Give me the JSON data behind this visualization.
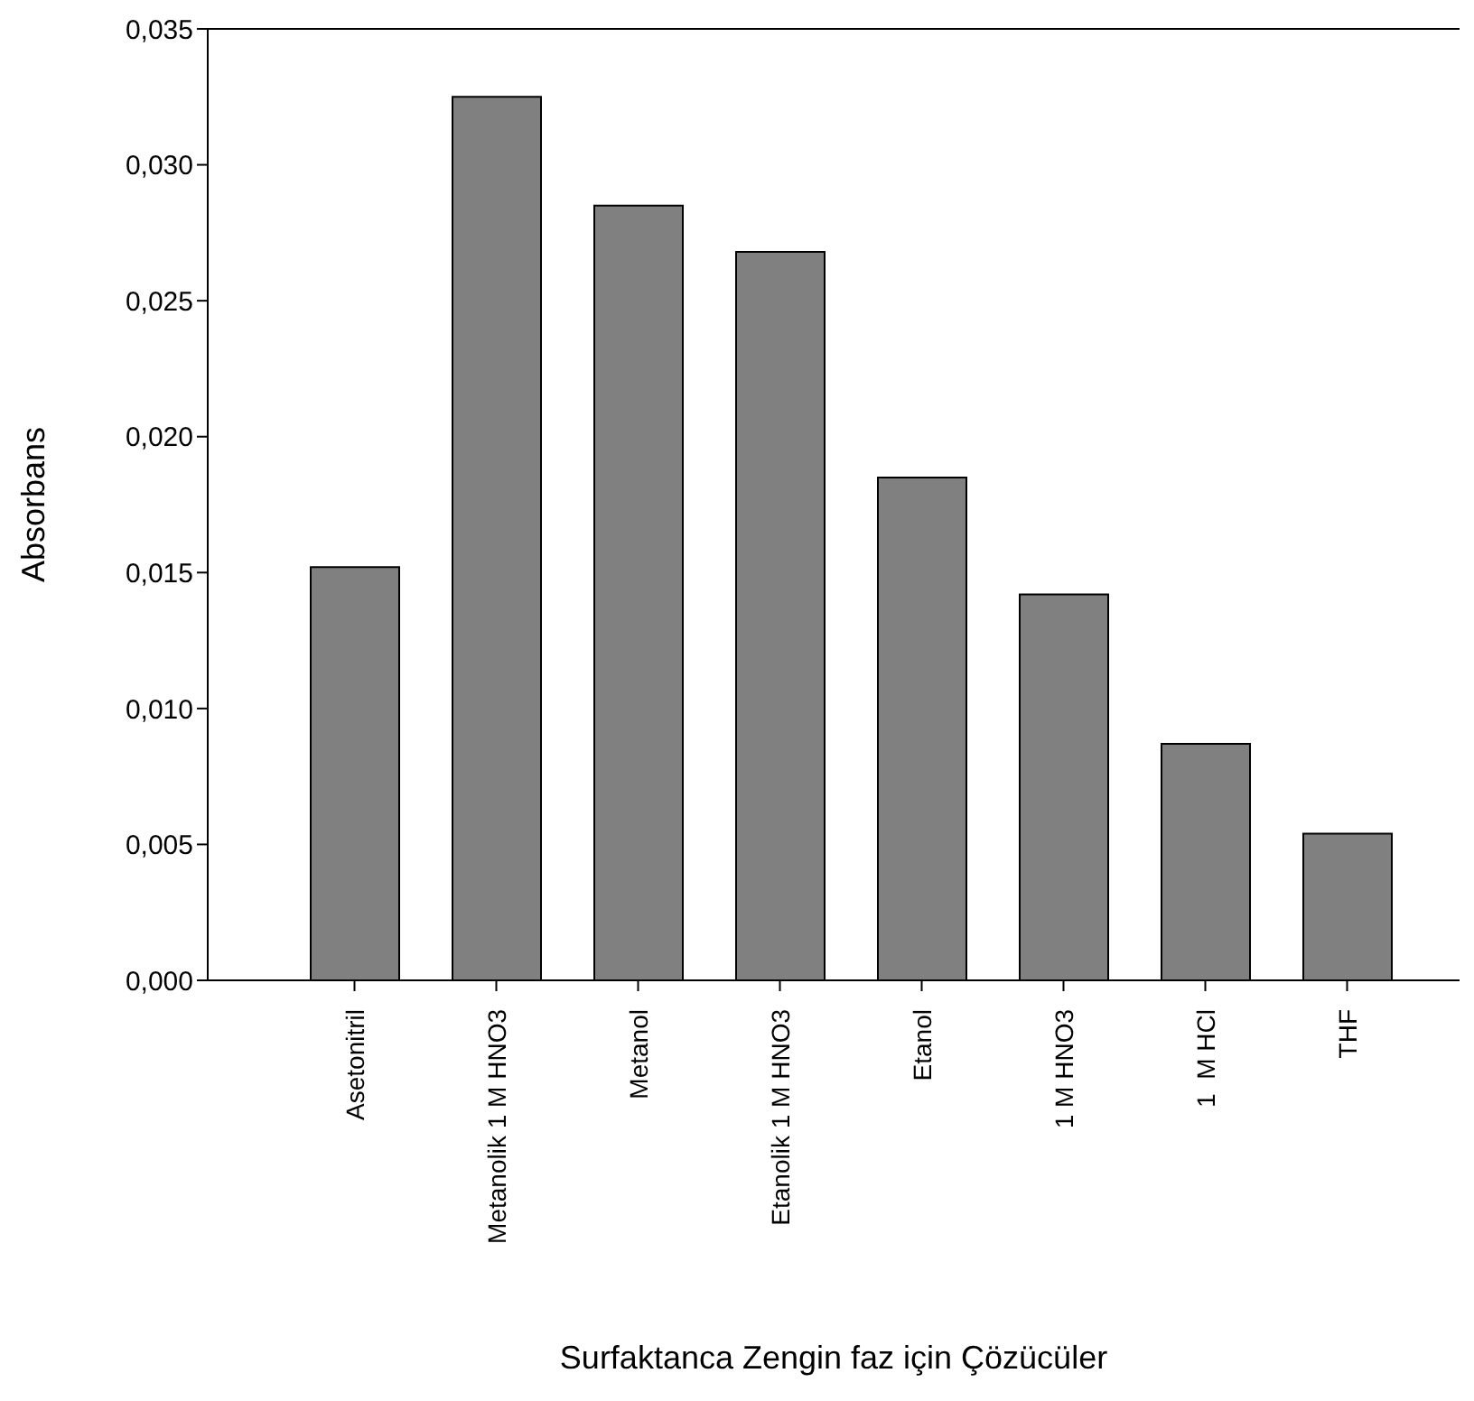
{
  "chart_data": {
    "type": "bar",
    "xlabel": "Surfaktanca Zengin faz için Çözücüler",
    "ylabel": "Absorbans",
    "categories": [
      "Asetonitril",
      "Metanolik 1 M HNO3",
      "Metanol",
      "Etanolik 1 M HNO3",
      "Etanol",
      "1 M HNO3",
      "1  M HCl",
      "THF"
    ],
    "values": [
      0.0152,
      0.0325,
      0.0285,
      0.0268,
      0.0185,
      0.0142,
      0.0087,
      0.0054
    ],
    "color": "#808080",
    "ylim": [
      0,
      0.035
    ],
    "yticks": [
      {
        "value": 0,
        "label": "0,000"
      },
      {
        "value": 0.005,
        "label": "0,005"
      },
      {
        "value": 0.01,
        "label": "0,010"
      },
      {
        "value": 0.015,
        "label": "0,015"
      },
      {
        "value": 0.02,
        "label": "0,020"
      },
      {
        "value": 0.025,
        "label": "0,025"
      },
      {
        "value": 0.03,
        "label": "0,030"
      },
      {
        "value": 0.035,
        "label": "0,035"
      }
    ]
  }
}
